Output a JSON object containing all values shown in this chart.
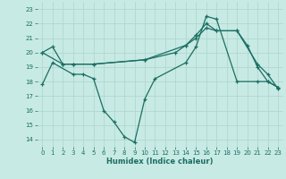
{
  "xlabel": "Humidex (Indice chaleur)",
  "xlim": [
    -0.5,
    23.5
  ],
  "ylim": [
    13.5,
    23.5
  ],
  "yticks": [
    14,
    15,
    16,
    17,
    18,
    19,
    20,
    21,
    22,
    23
  ],
  "xticks": [
    0,
    1,
    2,
    3,
    4,
    5,
    6,
    7,
    8,
    9,
    10,
    11,
    12,
    13,
    14,
    15,
    16,
    17,
    18,
    19,
    20,
    21,
    22,
    23
  ],
  "bg_color": "#c8eae4",
  "grid_color": "#b0d8d0",
  "line_color": "#1a6e62",
  "line1_x": [
    0,
    1,
    2,
    3,
    5,
    10,
    14,
    15,
    16,
    17,
    19,
    20,
    21,
    22,
    23
  ],
  "line1_y": [
    20.0,
    20.4,
    19.2,
    19.2,
    19.2,
    19.5,
    20.5,
    21.0,
    21.7,
    21.5,
    21.5,
    20.5,
    19.0,
    18.0,
    17.6
  ],
  "line2_x": [
    0,
    2,
    3,
    5,
    10,
    13,
    14,
    15,
    16,
    17,
    19,
    21,
    22,
    23
  ],
  "line2_y": [
    20.0,
    19.2,
    19.2,
    19.2,
    19.5,
    20.0,
    20.5,
    21.2,
    22.0,
    21.5,
    21.5,
    19.2,
    18.5,
    17.5
  ],
  "line3_x": [
    0,
    1,
    3,
    4,
    5,
    6,
    7,
    8,
    9,
    10,
    11,
    14,
    15,
    16,
    17,
    19,
    21,
    22,
    23
  ],
  "line3_y": [
    17.8,
    19.3,
    18.5,
    18.5,
    18.2,
    16.0,
    15.2,
    14.2,
    13.8,
    16.8,
    18.2,
    19.3,
    20.4,
    22.5,
    22.3,
    18.0,
    18.0,
    18.0,
    17.6
  ]
}
